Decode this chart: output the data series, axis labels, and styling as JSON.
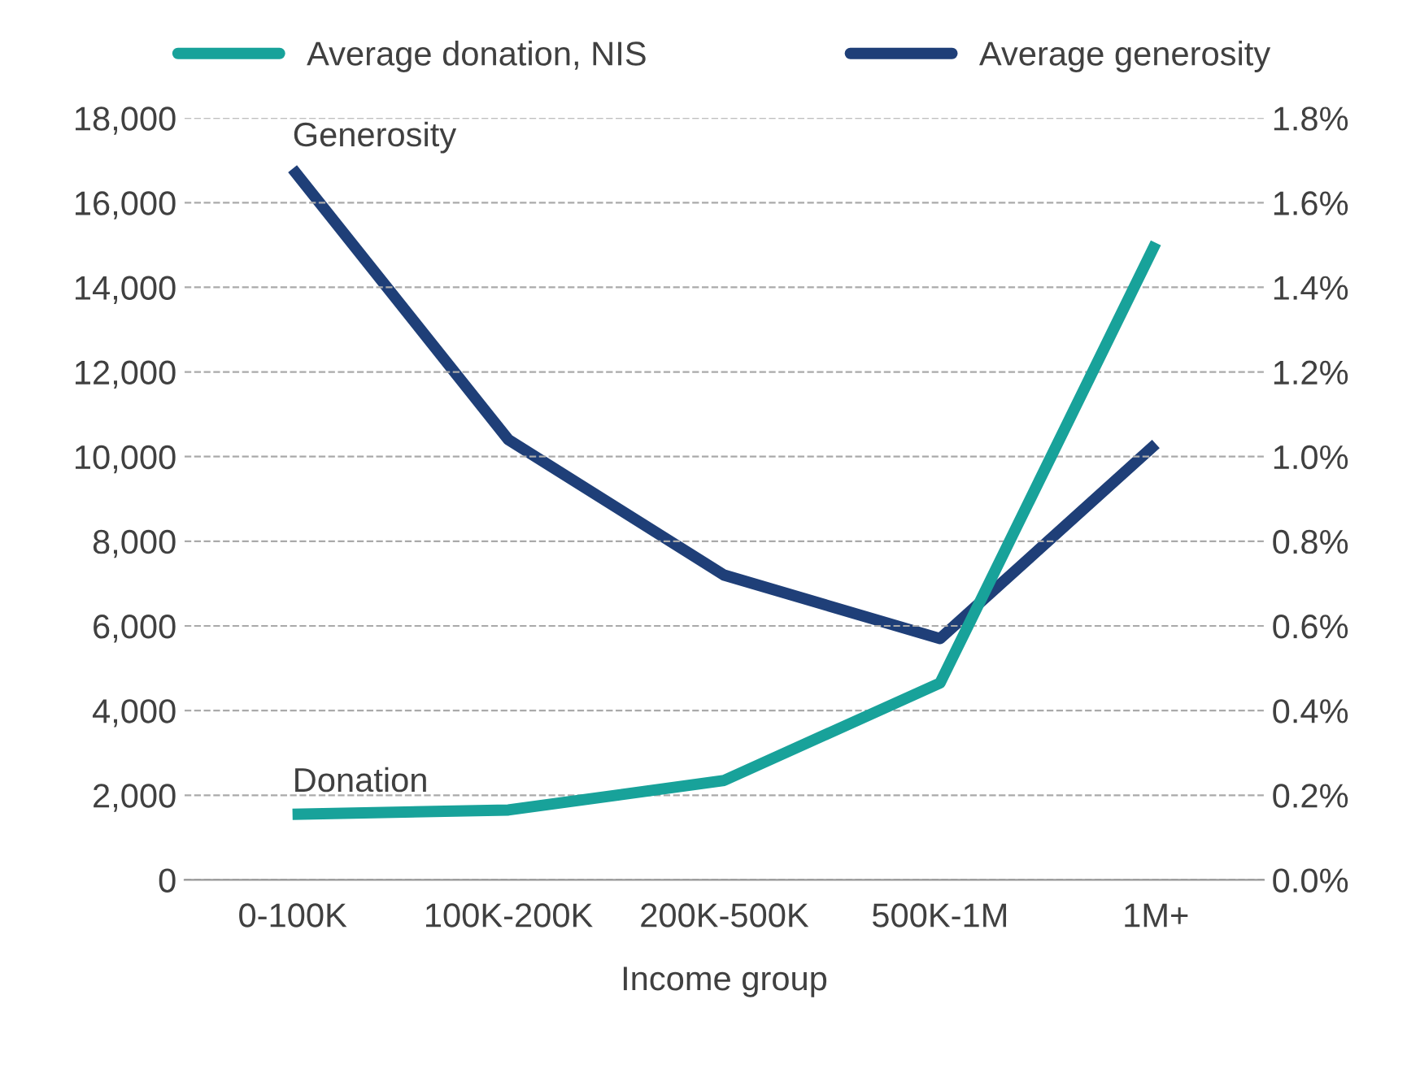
{
  "chart_data": {
    "type": "line",
    "xlabel": "Income group",
    "categories": [
      "0-100K",
      "100K-200K",
      "200K-500K",
      "500K-1M",
      "1M+"
    ],
    "series": [
      {
        "name": "Average donation, NIS",
        "color": "#18a29a",
        "values": [
          1550,
          1650,
          2350,
          4650,
          15050
        ]
      },
      {
        "name": "Average generosity",
        "color": "#1f3f78",
        "values": [
          1.68,
          1.04,
          0.72,
          0.57,
          1.03
        ],
        "axis": "y2"
      }
    ],
    "ylim": [
      0,
      18000
    ],
    "yticks": [
      {
        "value": 0,
        "label": "0"
      },
      {
        "value": 2000,
        "label": "2,000"
      },
      {
        "value": 4000,
        "label": "4,000"
      },
      {
        "value": 6000,
        "label": "6,000"
      },
      {
        "value": 8000,
        "label": "8,000"
      },
      {
        "value": 10000,
        "label": "10,000"
      },
      {
        "value": 12000,
        "label": "12,000"
      },
      {
        "value": 14000,
        "label": "14,000"
      },
      {
        "value": 16000,
        "label": "16,000"
      },
      {
        "value": 18000,
        "label": "18,000"
      }
    ],
    "y2lim": [
      0,
      1.8
    ],
    "y2ticks": [
      {
        "value": 0,
        "label": "0.0%"
      },
      {
        "value": 0.2,
        "label": "0.2%"
      },
      {
        "value": 0.4,
        "label": "0.4%"
      },
      {
        "value": 0.6,
        "label": "0.6%"
      },
      {
        "value": 0.8,
        "label": "0.8%"
      },
      {
        "value": 1.0,
        "label": "1.0%"
      },
      {
        "value": 1.2,
        "label": "1.2%"
      },
      {
        "value": 1.4,
        "label": "1.4%"
      },
      {
        "value": 1.6,
        "label": "1.6%"
      },
      {
        "value": 1.8,
        "label": "1.8%"
      }
    ],
    "annotations": [
      "Generosity",
      "Donation"
    ],
    "grid": "y",
    "legend": "top",
    "line_style": "solid",
    "marker": "none"
  }
}
